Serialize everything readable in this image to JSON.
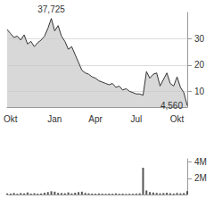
{
  "chart_data": [
    {
      "type": "line",
      "categories": [
        null,
        "Okt",
        null,
        null,
        null,
        null,
        null,
        null,
        null,
        null,
        null,
        null,
        null,
        null,
        "Jan",
        null,
        null,
        null,
        null,
        null,
        null,
        null,
        null,
        null,
        null,
        null,
        "Apr",
        null,
        null,
        null,
        null,
        null,
        null,
        null,
        null,
        null,
        null,
        null,
        "Jul",
        null,
        null,
        null,
        null,
        null,
        null,
        null,
        null,
        null,
        null,
        null,
        "Okt",
        null,
        null,
        null
      ],
      "values": [
        33.5,
        32,
        30.5,
        31,
        29.5,
        31.5,
        28,
        29,
        27,
        28.5,
        29.5,
        31,
        34,
        37.725,
        33,
        35,
        31,
        29,
        26,
        27,
        24,
        21,
        18,
        17,
        16.5,
        15.5,
        15,
        14,
        13.5,
        13,
        12.5,
        13,
        11.5,
        12,
        10.5,
        11,
        10,
        9.5,
        9,
        9,
        8.5,
        17.5,
        15,
        16.5,
        17,
        12,
        14.5,
        17,
        13,
        12,
        15.5,
        11.5,
        9.5,
        4.56
      ],
      "annotations": [
        {
          "index": 13,
          "label": "37,725"
        },
        {
          "index": 53,
          "label": "4,560"
        }
      ],
      "color": "#333333",
      "ylim": [
        4,
        40
      ],
      "yticks": [
        10,
        20,
        30
      ],
      "grid": true
    },
    {
      "type": "bar",
      "categories": [
        null,
        "Okt",
        null,
        null,
        null,
        null,
        null,
        null,
        null,
        null,
        null,
        null,
        null,
        null,
        "Jan",
        null,
        null,
        null,
        null,
        null,
        null,
        null,
        null,
        null,
        null,
        null,
        "Apr",
        null,
        null,
        null,
        null,
        null,
        null,
        null,
        null,
        null,
        null,
        null,
        "Jul",
        null,
        null,
        null,
        null,
        null,
        null,
        null,
        null,
        null,
        null,
        null,
        "Okt",
        null,
        null,
        null
      ],
      "values": [
        150000,
        120000,
        200000,
        100000,
        180000,
        140000,
        250000,
        120000,
        160000,
        110000,
        130000,
        220000,
        300000,
        400000,
        350000,
        200000,
        180000,
        150000,
        260000,
        140000,
        220000,
        300000,
        350000,
        200000,
        150000,
        120000,
        100000,
        130000,
        110000,
        90000,
        120000,
        100000,
        140000,
        90000,
        110000,
        80000,
        100000,
        90000,
        120000,
        150000,
        3300000,
        500000,
        300000,
        250000,
        200000,
        150000,
        180000,
        220000,
        160000,
        120000,
        200000,
        150000,
        180000,
        400000
      ],
      "color": "#555555",
      "ylim": [
        0,
        4400000
      ],
      "yticks": [
        {
          "value": 2000000,
          "label": "2M"
        },
        {
          "value": 4000000,
          "label": "4M"
        }
      ],
      "tick_labels": "y",
      "grid": false
    }
  ]
}
